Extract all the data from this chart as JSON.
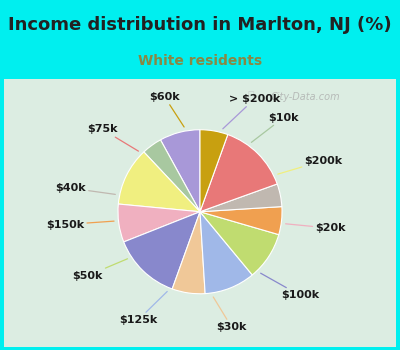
{
  "title": "Income distribution in Marlton, NJ (%)",
  "subtitle": "White residents",
  "background_outer": "#00EFEF",
  "background_chart": "#e0f0e8",
  "title_color": "#222222",
  "subtitle_color": "#888844",
  "labels": [
    "> $200k",
    "$10k",
    "$200k",
    "$20k",
    "$100k",
    "$30k",
    "$125k",
    "$50k",
    "$150k",
    "$40k",
    "$75k",
    "$60k"
  ],
  "values": [
    8.0,
    4.0,
    11.5,
    7.5,
    13.5,
    6.5,
    10.0,
    9.5,
    5.5,
    4.5,
    14.0,
    5.5
  ],
  "colors": [
    "#a898d8",
    "#a8c8a0",
    "#f0ef80",
    "#f0b0c0",
    "#8888cc",
    "#f0c898",
    "#a0b8e8",
    "#c0dc70",
    "#f0a050",
    "#c0b8b0",
    "#e87878",
    "#c8a010"
  ],
  "title_fontsize": 13,
  "subtitle_fontsize": 10,
  "label_fontsize": 8,
  "watermark_text": "City-Data.com"
}
